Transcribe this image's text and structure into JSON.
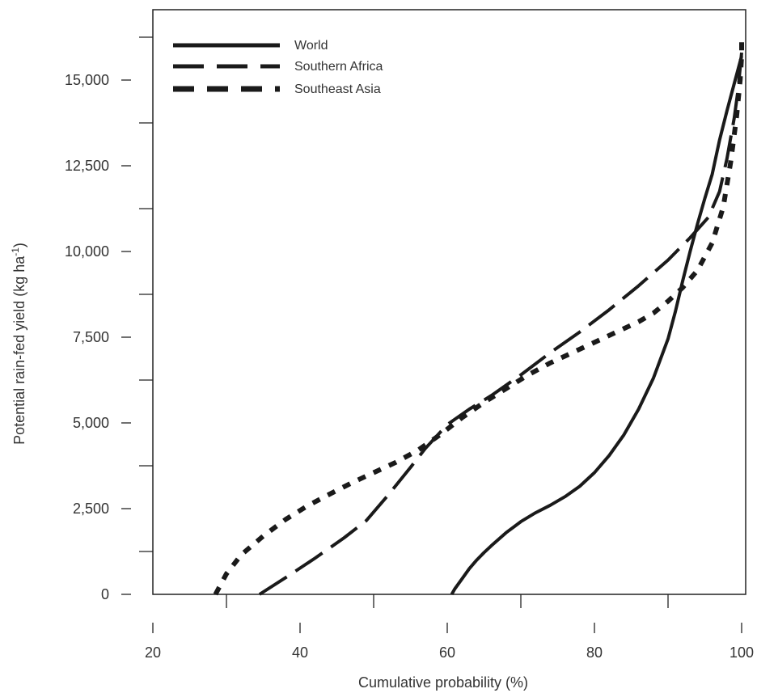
{
  "chart_data": {
    "type": "line",
    "xlabel": "Cumulative probability (%)",
    "ylabel_main": "Potential rain-fed yield (kg ha",
    "ylabel_sup": "-1",
    "ylabel_close": ")",
    "xlim": [
      20,
      100
    ],
    "ylim": [
      0,
      16500
    ],
    "x_ticks": [
      20,
      40,
      60,
      80,
      100
    ],
    "x_tick_labels": [
      "20",
      "40",
      "60",
      "80",
      "100"
    ],
    "x_minor_ticks": [
      30,
      50,
      70,
      90
    ],
    "y_ticks": [
      0,
      2500,
      5000,
      7500,
      10000,
      12500,
      15000
    ],
    "y_tick_labels": [
      "0",
      "2,500",
      "5,000",
      "7,500",
      "10,000",
      "12,500",
      "15,000"
    ],
    "y_minor_ticks": [
      1250,
      3750,
      6250,
      8750,
      11250,
      13750,
      16250
    ],
    "legend_position": "top-left",
    "series": [
      {
        "name": "World",
        "style": "solid",
        "x": [
          60.6,
          61,
          62,
          63,
          64,
          65,
          66,
          68,
          70,
          72,
          74,
          76,
          78,
          80,
          82,
          84,
          86,
          88,
          90,
          91,
          92,
          93,
          94,
          95,
          96,
          96.3,
          97,
          98,
          99,
          100
        ],
        "y": [
          0,
          150,
          450,
          750,
          1000,
          1220,
          1420,
          1800,
          2120,
          2380,
          2600,
          2850,
          3150,
          3550,
          4050,
          4650,
          5400,
          6300,
          7450,
          8250,
          9150,
          10000,
          10800,
          11550,
          12250,
          12550,
          13250,
          14100,
          14900,
          15700
        ]
      },
      {
        "name": "Southern Africa",
        "style": "long-dash",
        "x": [
          34.5,
          38,
          42,
          46,
          49,
          52,
          55,
          57,
          60,
          63,
          66,
          70,
          74,
          78,
          82,
          86,
          90,
          93,
          95.5,
          97,
          98,
          99,
          99.5,
          100
        ],
        "y": [
          0,
          480,
          1050,
          1650,
          2150,
          2900,
          3700,
          4250,
          4950,
          5400,
          5800,
          6400,
          7050,
          7650,
          8300,
          9000,
          9750,
          10400,
          11000,
          11750,
          12700,
          13900,
          14700,
          15800
        ]
      },
      {
        "name": "Southeast Asia",
        "style": "short-dash",
        "x": [
          28.5,
          30,
          32,
          35,
          38,
          41,
          44,
          47,
          50,
          53,
          56,
          59,
          62,
          65,
          68,
          71,
          74,
          77,
          80,
          83,
          86,
          88,
          90,
          92,
          94,
          96,
          97.5,
          98.5,
          99.3,
          99.8,
          100,
          100
        ],
        "y": [
          0,
          600,
          1150,
          1700,
          2180,
          2580,
          2920,
          3250,
          3550,
          3850,
          4200,
          4650,
          5150,
          5600,
          6000,
          6400,
          6750,
          7050,
          7350,
          7650,
          7950,
          8200,
          8550,
          8950,
          9450,
          10250,
          11300,
          12600,
          13900,
          15000,
          15700,
          16300
        ]
      }
    ]
  }
}
